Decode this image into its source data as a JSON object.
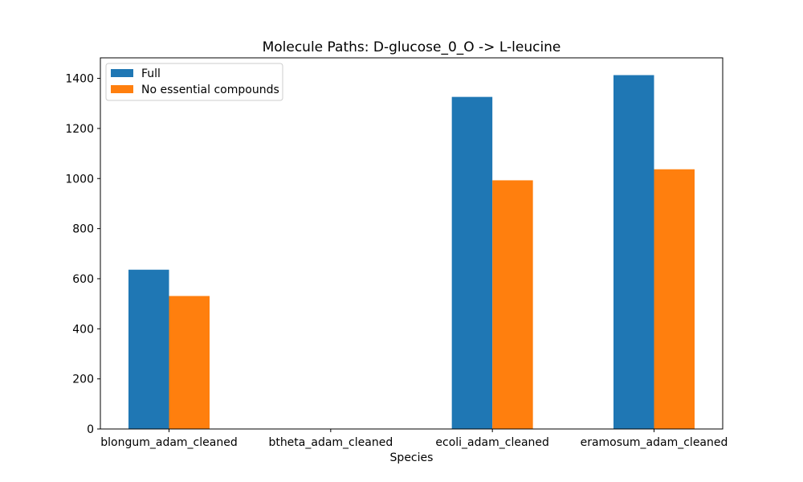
{
  "chart_data": {
    "type": "bar",
    "title": "Molecule Paths: D-glucose_0_O -> L-leucine",
    "xlabel": "Species",
    "ylabel": "",
    "categories": [
      "blongum_adam_cleaned",
      "btheta_adam_cleaned",
      "ecoli_adam_cleaned",
      "eramosum_adam_cleaned"
    ],
    "series": [
      {
        "name": "Full",
        "color": "#1f77b4",
        "values": [
          636,
          0,
          1326,
          1413
        ]
      },
      {
        "name": "No essential compounds",
        "color": "#ff7f0e",
        "values": [
          531,
          0,
          993,
          1037
        ]
      }
    ],
    "ylim": [
      0,
      1482
    ],
    "yticks": [
      0,
      200,
      400,
      600,
      800,
      1000,
      1200,
      1400
    ],
    "grid": false,
    "legend_position": "top-left"
  }
}
